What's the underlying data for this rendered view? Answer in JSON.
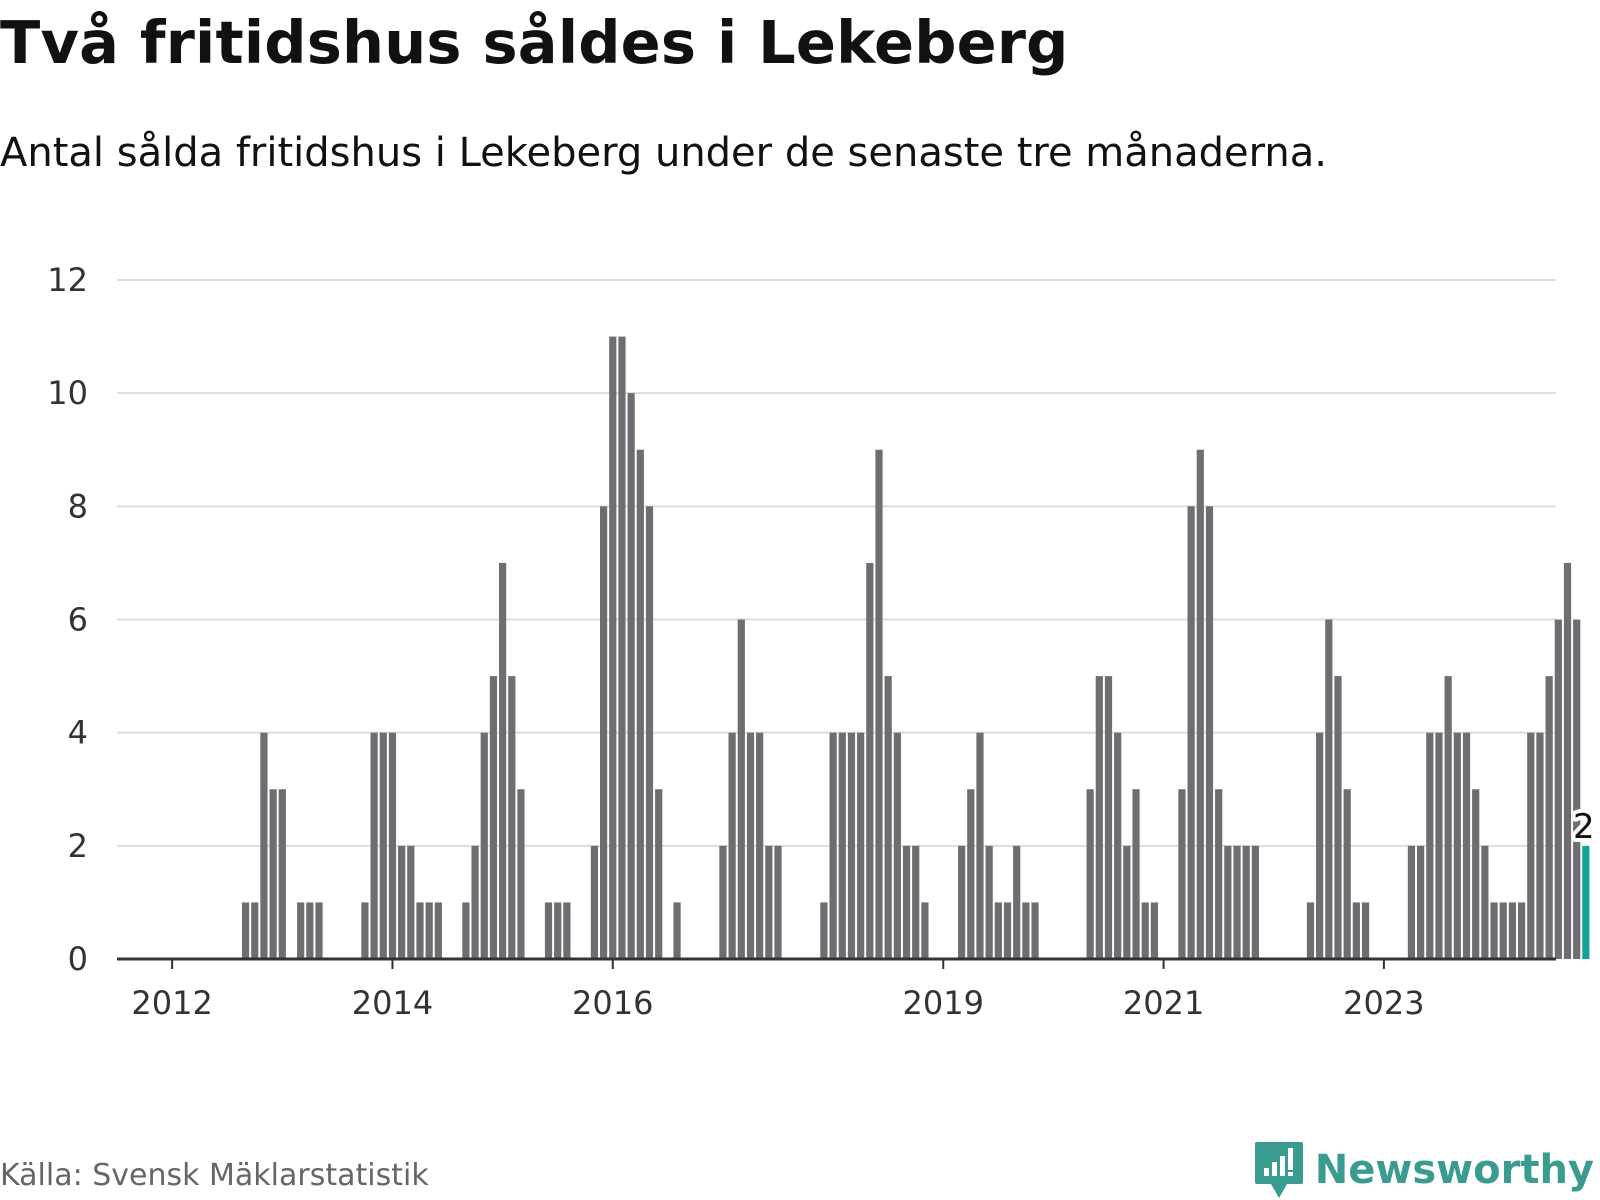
{
  "title": "Två fritidshus såldes i Lekeberg",
  "subtitle": "Antal sålda fritidshus i Lekeberg under de senaste tre månaderna.",
  "source": "Källa: Svensk Mäklarstatistik",
  "brand": {
    "name": "Newsworthy",
    "icon": "newsworthy-logo-icon",
    "color": "#3a9b91"
  },
  "colors": {
    "bar": "#6e6d72",
    "highlight": "#12a29a",
    "grid": "#dddddd",
    "axis": "#333333"
  },
  "chart_data": {
    "type": "bar",
    "title": "Två fritidshus såldes i Lekeberg",
    "subtitle": "Antal sålda fritidshus i Lekeberg under de senaste tre månaderna.",
    "xlabel": "",
    "ylabel": "",
    "ylim": [
      0,
      12
    ],
    "yticks": [
      0,
      2,
      4,
      6,
      8,
      10,
      12
    ],
    "grid": true,
    "x_tick_labels": [
      "2012",
      "2014",
      "2016",
      "2019",
      "2021",
      "2023"
    ],
    "start_month": "2011-10",
    "values": [
      0,
      0,
      0,
      0,
      0,
      0,
      0,
      0,
      0,
      0,
      0,
      1,
      1,
      4,
      3,
      3,
      0,
      1,
      1,
      1,
      0,
      0,
      0,
      0,
      1,
      4,
      4,
      4,
      2,
      2,
      1,
      1,
      1,
      0,
      0,
      1,
      2,
      4,
      5,
      7,
      5,
      3,
      0,
      0,
      1,
      1,
      1,
      0,
      0,
      2,
      8,
      11,
      11,
      10,
      9,
      8,
      3,
      0,
      1,
      0,
      0,
      0,
      0,
      2,
      4,
      6,
      4,
      4,
      2,
      2,
      0,
      0,
      0,
      0,
      1,
      4,
      4,
      4,
      4,
      7,
      9,
      5,
      4,
      2,
      2,
      1,
      0,
      0,
      0,
      2,
      3,
      4,
      2,
      1,
      1,
      2,
      1,
      1,
      0,
      0,
      0,
      0,
      0,
      3,
      5,
      5,
      4,
      2,
      3,
      1,
      1,
      0,
      0,
      3,
      8,
      9,
      8,
      3,
      2,
      2,
      2,
      2,
      0,
      0,
      0,
      0,
      0,
      1,
      4,
      6,
      5,
      3,
      1,
      1,
      0,
      0,
      0,
      0,
      2,
      2,
      4,
      4,
      5,
      4,
      4,
      3,
      2,
      1,
      1,
      1,
      1,
      4,
      4,
      5,
      6,
      7,
      6,
      2
    ],
    "highlight_last": true,
    "annotations": [
      {
        "label": "2",
        "value": 2,
        "position": "last-bar"
      }
    ]
  }
}
